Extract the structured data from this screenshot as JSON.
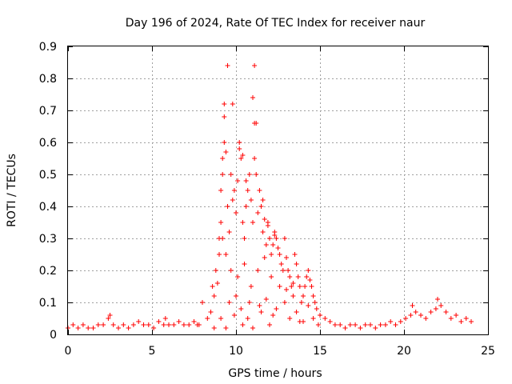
{
  "chart_data": {
    "type": "scatter",
    "title": "Day 196 of 2024, Rate Of TEC Index for receiver naur",
    "xlabel": "GPS time / hours",
    "ylabel": "ROTI / TECUs",
    "xlim": [
      0,
      25
    ],
    "ylim": [
      0,
      0.9
    ],
    "xticks": [
      0,
      5,
      10,
      15,
      20,
      25
    ],
    "yticks": [
      0,
      0.1,
      0.2,
      0.3,
      0.4,
      0.5,
      0.6,
      0.7,
      0.8,
      0.9
    ],
    "xtick_labels": [
      "0",
      "5",
      "10",
      "15",
      "20",
      "25"
    ],
    "ytick_labels": [
      "0",
      "0.1",
      "0.2",
      "0.3",
      "0.4",
      "0.5",
      "0.6",
      "0.7",
      "0.8",
      "0.9"
    ],
    "grid": true,
    "marker": "+",
    "color": "#ff0000",
    "series": [
      {
        "x": [
          0.0,
          0.3,
          0.6,
          0.9,
          1.2,
          1.5,
          1.8,
          2.1,
          2.4,
          2.5,
          2.7,
          3.0,
          3.3,
          3.6,
          3.9,
          4.2,
          4.5,
          4.8,
          5.1,
          5.4,
          5.7,
          5.8,
          6.0,
          6.3,
          6.6,
          6.9,
          7.2,
          7.5,
          7.7,
          7.8,
          8.0,
          8.3,
          8.5,
          8.6,
          8.7,
          8.8,
          8.9,
          9.0,
          9.0,
          9.1,
          9.1,
          9.2,
          9.2,
          9.3,
          9.3,
          9.4,
          9.5,
          9.6,
          9.7,
          9.8,
          9.9,
          10.0,
          10.1,
          10.2,
          10.3,
          10.4,
          10.5,
          10.6,
          10.7,
          10.8,
          10.9,
          11.0,
          11.1,
          11.1,
          11.2,
          11.3,
          11.4,
          11.5,
          11.6,
          11.7,
          11.8,
          11.9,
          12.0,
          12.1,
          12.2,
          12.3,
          12.4,
          12.5,
          12.6,
          12.7,
          12.8,
          12.9,
          13.0,
          13.1,
          13.2,
          13.3,
          13.4,
          13.5,
          13.6,
          13.7,
          13.8,
          13.9,
          14.0,
          14.1,
          14.2,
          14.3,
          14.4,
          14.5,
          14.6,
          14.7,
          14.8,
          15.0,
          15.3,
          15.6,
          15.9,
          16.2,
          16.5,
          16.8,
          17.1,
          17.4,
          17.7,
          18.0,
          18.3,
          18.6,
          18.9,
          19.2,
          19.5,
          19.8,
          20.1,
          20.4,
          20.5,
          20.7,
          21.0,
          21.3,
          21.6,
          21.9,
          22.0,
          22.2,
          22.5,
          22.8,
          23.1,
          23.4,
          23.7,
          24.0,
          9.2,
          9.3,
          9.5,
          9.8,
          10.2,
          10.4,
          10.6,
          11.0,
          11.1,
          11.2,
          11.6,
          11.9,
          12.3,
          9.4,
          9.7,
          10.1,
          10.5,
          10.9,
          11.3,
          11.7,
          12.1,
          12.6,
          13.0,
          13.4,
          9.6,
          10.0,
          10.3,
          10.8,
          11.4,
          11.8,
          12.4,
          12.9,
          13.6,
          14.3,
          9.1,
          9.9,
          10.7,
          11.5,
          12.2,
          13.2,
          14.0,
          14.6,
          8.7,
          9.4,
          10.4,
          11.0,
          12.0,
          13.8,
          14.9
        ],
        "y": [
          0.02,
          0.03,
          0.02,
          0.03,
          0.02,
          0.02,
          0.03,
          0.03,
          0.05,
          0.06,
          0.03,
          0.02,
          0.03,
          0.02,
          0.03,
          0.04,
          0.03,
          0.03,
          0.02,
          0.04,
          0.03,
          0.05,
          0.03,
          0.03,
          0.04,
          0.03,
          0.03,
          0.04,
          0.03,
          0.03,
          0.1,
          0.05,
          0.07,
          0.15,
          0.12,
          0.2,
          0.16,
          0.25,
          0.3,
          0.35,
          0.45,
          0.55,
          0.5,
          0.6,
          0.68,
          0.57,
          0.4,
          0.32,
          0.5,
          0.42,
          0.45,
          0.38,
          0.48,
          0.58,
          0.55,
          0.35,
          0.3,
          0.4,
          0.45,
          0.5,
          0.42,
          0.35,
          0.55,
          0.66,
          0.5,
          0.38,
          0.45,
          0.4,
          0.32,
          0.36,
          0.28,
          0.35,
          0.3,
          0.25,
          0.28,
          0.31,
          0.3,
          0.27,
          0.25,
          0.22,
          0.2,
          0.3,
          0.24,
          0.2,
          0.18,
          0.15,
          0.12,
          0.25,
          0.22,
          0.18,
          0.15,
          0.1,
          0.12,
          0.15,
          0.18,
          0.2,
          0.17,
          0.15,
          0.12,
          0.1,
          0.08,
          0.06,
          0.05,
          0.04,
          0.03,
          0.03,
          0.02,
          0.03,
          0.03,
          0.02,
          0.03,
          0.03,
          0.02,
          0.03,
          0.03,
          0.04,
          0.03,
          0.04,
          0.05,
          0.06,
          0.09,
          0.07,
          0.06,
          0.05,
          0.07,
          0.08,
          0.11,
          0.09,
          0.07,
          0.05,
          0.06,
          0.04,
          0.05,
          0.04,
          0.3,
          0.72,
          0.84,
          0.72,
          0.6,
          0.56,
          0.48,
          0.74,
          0.84,
          0.66,
          0.42,
          0.34,
          0.32,
          0.25,
          0.2,
          0.18,
          0.22,
          0.15,
          0.2,
          0.24,
          0.18,
          0.15,
          0.14,
          0.16,
          0.1,
          0.12,
          0.08,
          0.1,
          0.09,
          0.11,
          0.08,
          0.1,
          0.07,
          0.09,
          0.05,
          0.06,
          0.05,
          0.07,
          0.06,
          0.05,
          0.04,
          0.05,
          0.02,
          0.02,
          0.03,
          0.02,
          0.03,
          0.04,
          0.03
        ]
      }
    ]
  }
}
